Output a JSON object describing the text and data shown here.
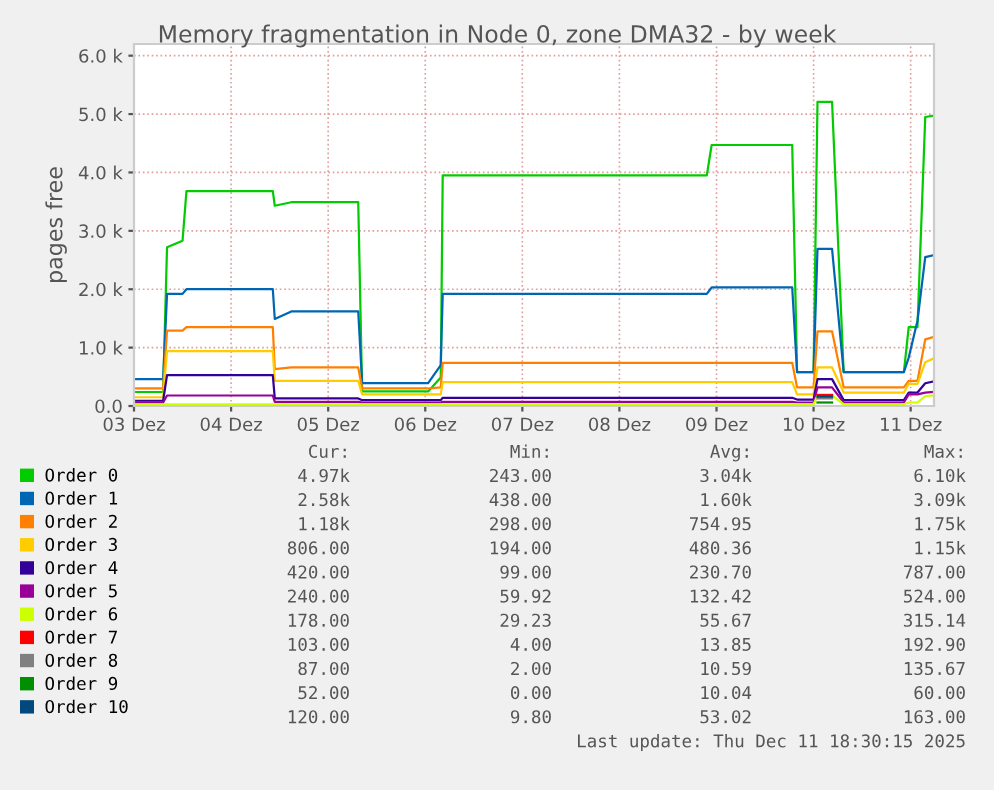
{
  "chart_data": {
    "type": "line",
    "title": "Memory fragmentation in Node 0, zone DMA32 - by week",
    "ylabel": "pages free",
    "x": [
      "2025-12-03T00:00",
      "2025-12-03T07:12",
      "2025-12-03T08:10",
      "2025-12-03T12:00",
      "2025-12-03T12:58",
      "2025-12-04T10:19",
      "2025-12-04T10:48",
      "2025-12-04T14:53",
      "2025-12-05T07:26",
      "2025-12-05T08:24",
      "2025-12-06T00:43",
      "2025-12-06T03:50",
      "2025-12-06T04:19",
      "2025-12-08T21:36",
      "2025-12-08T22:48",
      "2025-12-09T18:43",
      "2025-12-09T19:55",
      "2025-12-10T00:00",
      "2025-12-10T00:58",
      "2025-12-10T04:34",
      "2025-12-10T07:26",
      "2025-12-10T22:19",
      "2025-12-10T23:31",
      "2025-12-11T01:41",
      "2025-12-11T03:36",
      "2025-12-11T05:31"
    ],
    "xlim": [
      "2025-12-03T00:00",
      "2025-12-11T05:46"
    ],
    "xticks": [
      {
        "value": "2025-12-03",
        "label": "03 Dez"
      },
      {
        "value": "2025-12-04",
        "label": "04 Dez"
      },
      {
        "value": "2025-12-05",
        "label": "05 Dez"
      },
      {
        "value": "2025-12-06",
        "label": "06 Dez"
      },
      {
        "value": "2025-12-07",
        "label": "07 Dez"
      },
      {
        "value": "2025-12-08",
        "label": "08 Dez"
      },
      {
        "value": "2025-12-09",
        "label": "09 Dez"
      },
      {
        "value": "2025-12-10",
        "label": "10 Dez"
      },
      {
        "value": "2025-12-11",
        "label": "11 Dez"
      }
    ],
    "ylim": [
      0,
      6200
    ],
    "yticks": [
      {
        "value": 0,
        "label": "0.0"
      },
      {
        "value": 1000,
        "label": "1.0 k"
      },
      {
        "value": 2000,
        "label": "2.0 k"
      },
      {
        "value": 3000,
        "label": "3.0 k"
      },
      {
        "value": 4000,
        "label": "4.0 k"
      },
      {
        "value": 5000,
        "label": "5.0 k"
      },
      {
        "value": 6000,
        "label": "6.0 k"
      }
    ],
    "grid": true,
    "legend": "bottom",
    "marker": "none",
    "line_style": "solid",
    "series": [
      {
        "name": "Order 0",
        "color": "#00cc00",
        "values": [
          240,
          240,
          2720,
          2830,
          3680,
          3680,
          3430,
          3490,
          3490,
          250,
          250,
          490,
          3950,
          3950,
          4470,
          4470,
          580,
          580,
          5210,
          5210,
          580,
          580,
          1350,
          1350,
          4950,
          4970
        ]
      },
      {
        "name": "Order 1",
        "color": "#0066b3",
        "values": [
          460,
          460,
          1920,
          1920,
          2000,
          2000,
          1490,
          1620,
          1620,
          390,
          390,
          700,
          1920,
          1920,
          2030,
          2030,
          580,
          580,
          2690,
          2690,
          580,
          580,
          830,
          1460,
          2550,
          2580
        ]
      },
      {
        "name": "Order 2",
        "color": "#ff8000",
        "values": [
          300,
          300,
          1290,
          1290,
          1350,
          1350,
          630,
          660,
          660,
          300,
          300,
          320,
          740,
          740,
          740,
          740,
          320,
          320,
          1280,
          1280,
          320,
          320,
          430,
          430,
          1140,
          1180
        ]
      },
      {
        "name": "Order 3",
        "color": "#ffcc00",
        "values": [
          150,
          150,
          940,
          940,
          940,
          940,
          430,
          430,
          430,
          200,
          200,
          200,
          410,
          410,
          410,
          410,
          200,
          200,
          660,
          660,
          230,
          230,
          380,
          380,
          750,
          810
        ]
      },
      {
        "name": "Order 4",
        "color": "#330099",
        "values": [
          90,
          90,
          530,
          530,
          530,
          530,
          130,
          130,
          130,
          100,
          100,
          100,
          140,
          140,
          140,
          140,
          110,
          110,
          460,
          460,
          100,
          100,
          230,
          230,
          390,
          420
        ]
      },
      {
        "name": "Order 5",
        "color": "#990099",
        "values": [
          60,
          60,
          180,
          180,
          180,
          180,
          70,
          70,
          70,
          60,
          60,
          60,
          70,
          70,
          70,
          70,
          60,
          60,
          320,
          320,
          60,
          60,
          200,
          200,
          230,
          240
        ]
      },
      {
        "name": "Order 6",
        "color": "#ccff00",
        "values": [
          30,
          30,
          30,
          30,
          30,
          30,
          30,
          30,
          30,
          30,
          30,
          30,
          30,
          30,
          30,
          30,
          30,
          30,
          180,
          180,
          30,
          30,
          60,
          60,
          170,
          180
        ]
      },
      {
        "name": "Order 7",
        "color": "#ff0000",
        "values": [
          null,
          null,
          null,
          null,
          null,
          null,
          null,
          null,
          null,
          null,
          null,
          null,
          null,
          null,
          null,
          null,
          null,
          null,
          190,
          190,
          null,
          null,
          null,
          null,
          null,
          null
        ]
      },
      {
        "name": "Order 8",
        "color": "#808080",
        "values": [
          null,
          null,
          null,
          null,
          null,
          null,
          null,
          null,
          null,
          null,
          null,
          null,
          null,
          null,
          null,
          null,
          null,
          null,
          130,
          130,
          null,
          null,
          null,
          null,
          null,
          null
        ]
      },
      {
        "name": "Order 9",
        "color": "#008f00",
        "values": [
          null,
          null,
          null,
          null,
          null,
          null,
          null,
          null,
          null,
          null,
          null,
          null,
          null,
          null,
          null,
          null,
          null,
          null,
          60,
          60,
          null,
          null,
          null,
          null,
          null,
          null
        ]
      },
      {
        "name": "Order 10",
        "color": "#00487d",
        "values": [
          null,
          null,
          null,
          null,
          null,
          null,
          null,
          null,
          null,
          null,
          null,
          null,
          null,
          null,
          null,
          null,
          null,
          null,
          160,
          160,
          null,
          null,
          null,
          null,
          null,
          null
        ]
      }
    ],
    "annotations": [
      "Cur:",
      "Min:",
      "Avg:",
      "Max:",
      "4.97k",
      "243.00",
      "3.04k",
      "6.10k",
      "2.58k",
      "438.00",
      "1.60k",
      "3.09k",
      "1.18k",
      "298.00",
      "754.95",
      "1.75k",
      "806.00",
      "194.00",
      "480.36",
      "1.15k",
      "420.00",
      "99.00",
      "230.70",
      "787.00",
      "240.00",
      "59.92",
      "132.42",
      "524.00",
      "178.00",
      "29.23",
      "55.67",
      "315.14",
      "103.00",
      "4.00",
      "13.85",
      "192.90",
      "87.00",
      "2.00",
      "10.59",
      "135.67",
      "52.00",
      "0.00",
      "10.04",
      "60.00",
      "120.00",
      "9.80",
      "53.02",
      "163.00",
      "Last update: Thu Dec 11 18:30:15 2025"
    ]
  }
}
